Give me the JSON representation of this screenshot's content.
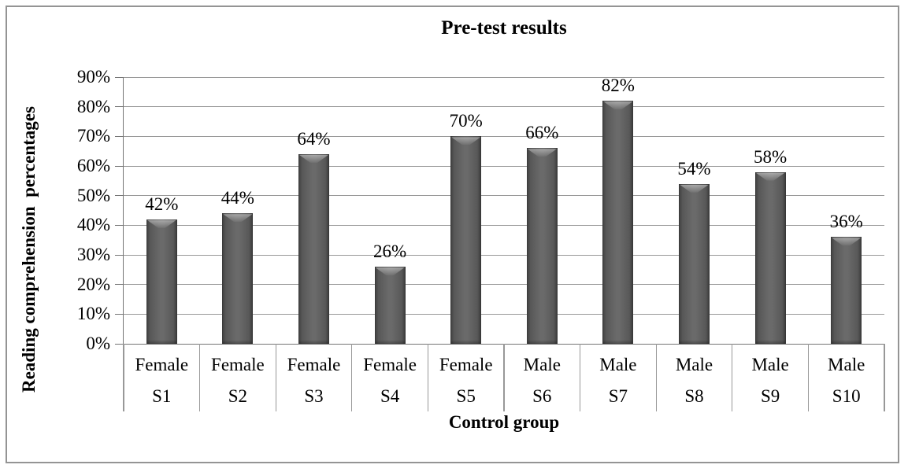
{
  "chart_data": {
    "type": "bar",
    "title": "Pre-test results",
    "xlabel": "Control group",
    "ylabel": "Reading comprehension  percentages",
    "categories": [
      "S1",
      "S2",
      "S3",
      "S4",
      "S5",
      "S6",
      "S7",
      "S8",
      "S9",
      "S10"
    ],
    "group_labels": [
      "Female",
      "Female",
      "Female",
      "Female",
      "Female",
      "Male",
      "Male",
      "Male",
      "Male",
      "Male"
    ],
    "values": [
      42,
      44,
      64,
      26,
      70,
      66,
      82,
      54,
      58,
      36
    ],
    "data_labels": [
      "42%",
      "44%",
      "64%",
      "26%",
      "70%",
      "66%",
      "82%",
      "54%",
      "58%",
      "36%"
    ],
    "ylim": [
      0,
      90
    ],
    "ytick_step": 10,
    "ytick_labels": [
      "0%",
      "10%",
      "20%",
      "30%",
      "40%",
      "50%",
      "60%",
      "70%",
      "80%",
      "90%"
    ],
    "grid": true,
    "legend": "none",
    "colors": {
      "bar": "#595959",
      "gridline": "#989898",
      "axis": "#757575",
      "text": "#000000",
      "frame_border": "#949494",
      "background": "#ffffff"
    }
  }
}
